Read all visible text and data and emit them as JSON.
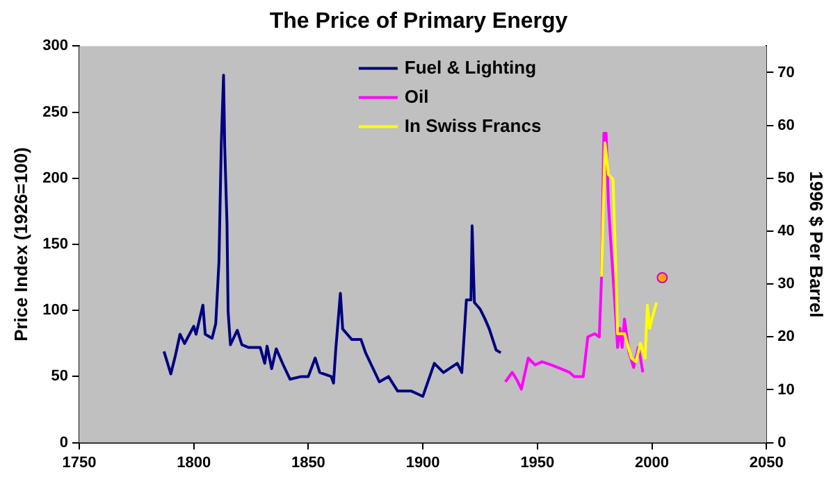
{
  "chart_data": {
    "type": "line",
    "title": "The Price of Primary Energy",
    "ylabel": "Price Index (1926=100)",
    "y2label": "1996 $ Per Barrel",
    "xlim": [
      1750,
      2050
    ],
    "xticks": [
      1750,
      1800,
      1850,
      1900,
      1950,
      2000,
      2050
    ],
    "ylim": [
      0,
      300
    ],
    "yticks": [
      0,
      50,
      100,
      150,
      200,
      250,
      300
    ],
    "y2lim": [
      0,
      75
    ],
    "y2ticks": [
      0,
      10,
      20,
      30,
      40,
      50,
      60,
      70
    ],
    "grid": false,
    "legend": "top",
    "marker": "none",
    "line_style": "solid",
    "series": [
      {
        "name": "Fuel & Lighting",
        "color": "#000080",
        "x": [
          1787,
          1790,
          1792,
          1794,
          1796,
          1800,
          1801,
          1804,
          1805,
          1808,
          1809.6,
          1811,
          1812,
          1813,
          1813.5,
          1814.5,
          1815,
          1816,
          1819,
          1821,
          1824,
          1829,
          1831,
          1832,
          1834,
          1836,
          1839,
          1842,
          1847,
          1850,
          1853,
          1855,
          1860,
          1861,
          1862,
          1864,
          1865,
          1867,
          1869,
          1873,
          1875,
          1881,
          1885,
          1889,
          1895,
          1900,
          1905,
          1909,
          1915,
          1917,
          1919,
          1921,
          1921.5,
          1922.5,
          1925,
          1927,
          1929,
          1932,
          1934
        ],
        "values": [
          69,
          52,
          66,
          82,
          75,
          88,
          82,
          104,
          82,
          79,
          90,
          137,
          225,
          278,
          225,
          166,
          99,
          74,
          85,
          74,
          72,
          72,
          60,
          73,
          56,
          71,
          59,
          48,
          50,
          50,
          64,
          53,
          50,
          45,
          71,
          113,
          86,
          82,
          78,
          78,
          68,
          46,
          50,
          39,
          39,
          35,
          60,
          53,
          60,
          53,
          108,
          108,
          164,
          106,
          101,
          94,
          86,
          70,
          68
        ]
      },
      {
        "name": "Oil",
        "color": "#ff00ff",
        "axis": "y2",
        "x": [
          1936,
          1939,
          1941,
          1943,
          1946,
          1949,
          1952,
          1956,
          1960,
          1964,
          1966,
          1970,
          1972,
          1975,
          1977,
          1978,
          1979,
          1980,
          1981,
          1982,
          1984,
          1985,
          1986,
          1987,
          1988,
          1990,
          1992,
          1994,
          1995,
          1996
        ],
        "values": [
          11.5,
          13.3,
          11.9,
          10.1,
          16,
          14.7,
          15.3,
          14.7,
          14,
          13.3,
          12.5,
          12.5,
          20,
          20.6,
          20,
          31.4,
          58.5,
          58.5,
          45.2,
          38,
          25,
          18,
          21.6,
          18,
          23.4,
          17,
          14.2,
          18,
          16,
          13.3
        ]
      },
      {
        "name": "In Swiss Francs",
        "color": "#ffff00",
        "axis": "y2",
        "x": [
          1978,
          1979.5,
          1981,
          1983,
          1984,
          1985,
          1988,
          1991,
          1993,
          1995,
          1997,
          1998,
          1999,
          2000,
          2002
        ],
        "values": [
          31.4,
          56.7,
          50.7,
          49.8,
          36,
          20.6,
          20.6,
          16,
          15.3,
          18.8,
          16,
          26,
          21.6,
          23.4,
          26.5
        ]
      },
      {
        "type": "scatter",
        "color": "#ffa500",
        "axis": "y2",
        "x": [
          2004.5
        ],
        "values": [
          31.2
        ],
        "marker": "circle"
      }
    ]
  }
}
